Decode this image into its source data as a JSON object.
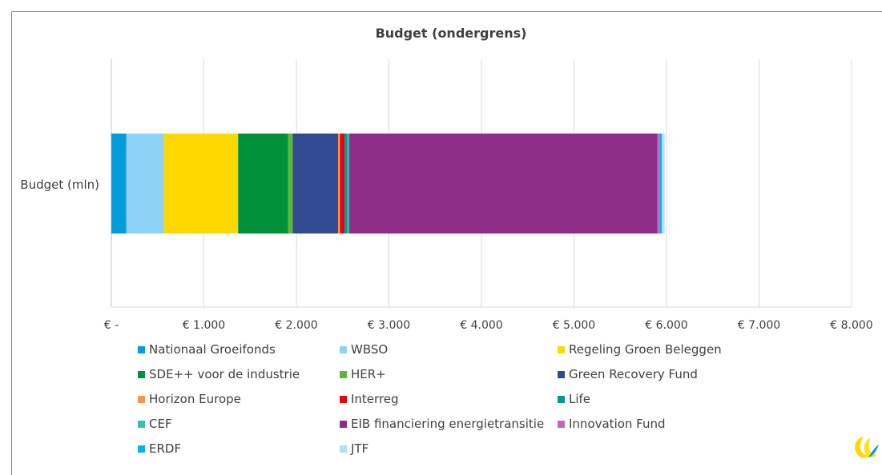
{
  "chart_data": {
    "type": "bar",
    "orientation": "horizontal",
    "stacked": true,
    "title": "Budget (ondergrens)",
    "categories": [
      "Budget (mln)"
    ],
    "xlim": [
      0,
      8000
    ],
    "xticks": [
      0,
      1000,
      2000,
      3000,
      4000,
      5000,
      6000,
      7000,
      8000
    ],
    "xtick_labels": [
      "€ -",
      "€ 1.000",
      "€ 2.000",
      "€ 3.000",
      "€ 4.000",
      "€ 5.000",
      "€ 6.000",
      "€ 7.000",
      "€ 8.000"
    ],
    "grid": true,
    "legend_position": "bottom",
    "series": [
      {
        "name": "Nationaal Groeifonds",
        "values": [
          160
        ],
        "color": "#009ddc"
      },
      {
        "name": "WBSO",
        "values": [
          410
        ],
        "color": "#8ed3f7"
      },
      {
        "name": "Regeling Groen Beleggen",
        "values": [
          800
        ],
        "color": "#ffd800"
      },
      {
        "name": "SDE++ voor de industrie",
        "values": [
          540
        ],
        "color": "#00913a"
      },
      {
        "name": "HER+",
        "values": [
          50
        ],
        "color": "#5cb83a"
      },
      {
        "name": "Green Recovery Fund",
        "values": [
          490
        ],
        "color": "#324a91"
      },
      {
        "name": "Horizon Europe",
        "values": [
          20
        ],
        "color": "#f7964a"
      },
      {
        "name": "Interreg",
        "values": [
          50
        ],
        "color": "#e30613"
      },
      {
        "name": "Life",
        "values": [
          30
        ],
        "color": "#009a93"
      },
      {
        "name": "CEF",
        "values": [
          20
        ],
        "color": "#39c2a8"
      },
      {
        "name": "EIB financiering energietransitie",
        "values": [
          3330
        ],
        "color": "#8e2c8a"
      },
      {
        "name": "Innovation Fund",
        "values": [
          30
        ],
        "color": "#c266b8"
      },
      {
        "name": "ERDF",
        "values": [
          20
        ],
        "color": "#00b5ef"
      },
      {
        "name": "JTF",
        "values": [
          30
        ],
        "color": "#b3dff7"
      }
    ]
  },
  "logo": {
    "icon": "company-logo",
    "colors": [
      "#ffd800",
      "#009ddc"
    ]
  }
}
